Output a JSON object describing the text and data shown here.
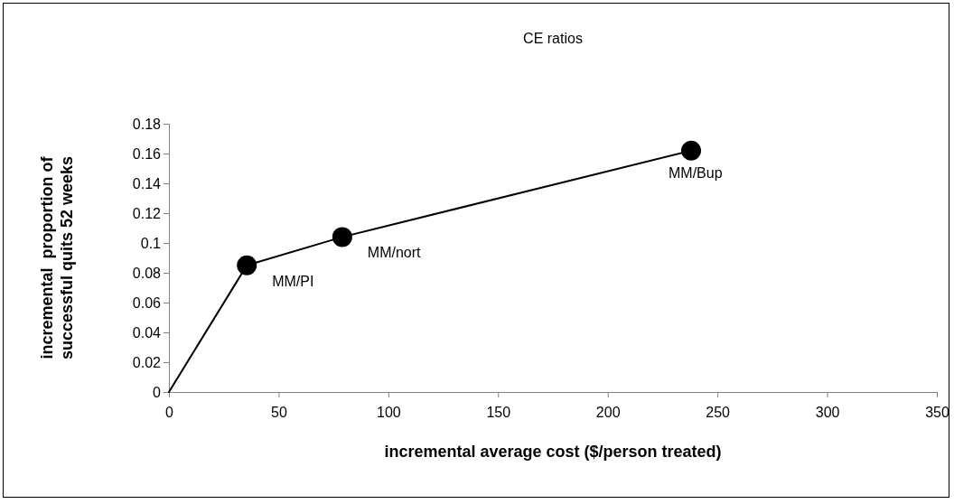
{
  "chart_data": {
    "type": "line",
    "title": "CE ratios",
    "xlabel": "incremental average cost ($/person treated)",
    "ylabel": "incremental  proportion of\nsuccessful quits 52 weeks",
    "x": [
      0,
      35.5,
      79,
      238
    ],
    "series": [
      {
        "color": "#000000",
        "values": [
          0,
          0.085,
          0.104,
          0.162
        ]
      }
    ],
    "xlim": [
      0,
      350
    ],
    "xticks": [
      0,
      50,
      100,
      150,
      200,
      250,
      300,
      350
    ],
    "ylim": [
      0,
      0.18
    ],
    "yticks": [
      0,
      0.02,
      0.04,
      0.06,
      0.08,
      0.1,
      0.12,
      0.14,
      0.16,
      0.18
    ],
    "grid": false,
    "marker": "circle",
    "line_style": "solid",
    "annotations": [
      {
        "text": "MM/PI",
        "x": 35.5,
        "y": 0.085
      },
      {
        "text": "MM/nort",
        "x": 79,
        "y": 0.104
      },
      {
        "text": "MM/Bup",
        "x": 238,
        "y": 0.162
      }
    ]
  }
}
